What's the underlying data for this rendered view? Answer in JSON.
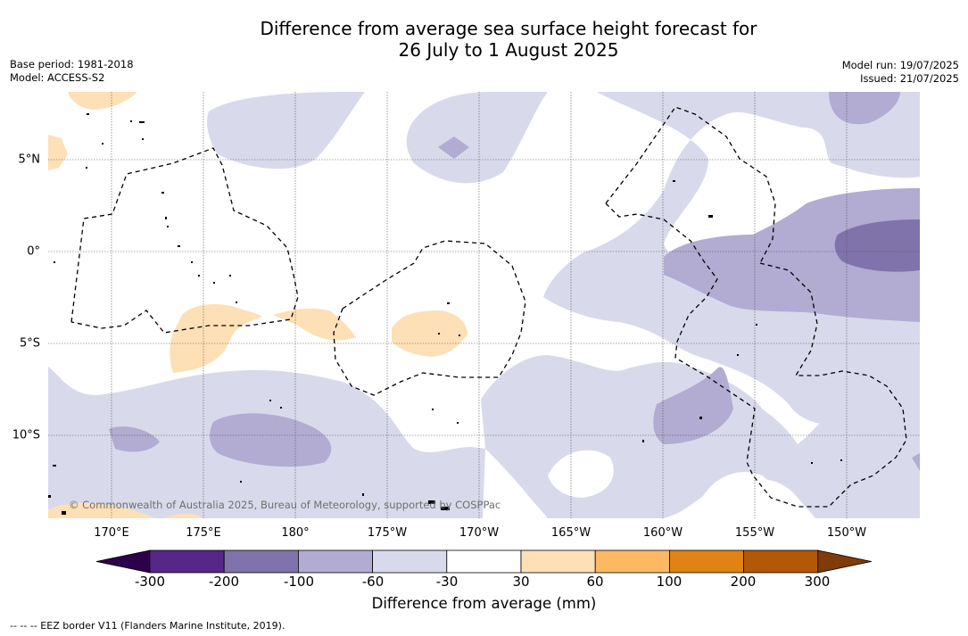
{
  "title": {
    "line1": "Difference from average sea surface height forecast for",
    "line2": "26 July to 1 August 2025"
  },
  "meta_left": {
    "base_period": "Base period: 1981-2018",
    "model": "Model: ACCESS-S2"
  },
  "meta_right": {
    "model_run": "Model run: 19/07/2025",
    "issued": "Issued: 21/07/2025"
  },
  "map": {
    "copyright": "© Commonwealth of Australia 2025, Bureau of Meteorology, supported by COSPPac",
    "lon_labels": [
      "170°E",
      "175°E",
      "180°",
      "175°W",
      "170°W",
      "165°W",
      "160°W",
      "155°W",
      "150°W"
    ],
    "lat_labels": [
      "5°N",
      "0°",
      "5°S",
      "10°S"
    ],
    "extent": {
      "lon_min": 165.5,
      "lon_max": 212.8,
      "lat_min": -14.5,
      "lat_max": 8.7
    },
    "colors": {
      "neg_300": "#2d004b",
      "neg_200": "#542788",
      "neg_100": "#8073ac",
      "neg_60": "#b2abd2",
      "neg_30": "#d8daeb",
      "zero": "#ffffff",
      "pos_30": "#fee0b6",
      "pos_60": "#fdb863",
      "pos_100": "#e08214",
      "pos_200": "#b35806",
      "pos_300": "#7f3b08"
    }
  },
  "colorbar": {
    "ticks": [
      "-300",
      "-200",
      "-100",
      "-60",
      "-30",
      "30",
      "60",
      "100",
      "200",
      "300"
    ],
    "label": "Difference from average (mm)",
    "colors": [
      "#2d004b",
      "#542788",
      "#8073ac",
      "#b2abd2",
      "#d8daeb",
      "#ffffff",
      "#fee0b6",
      "#fdb863",
      "#e08214",
      "#b35806",
      "#7f3b08"
    ]
  },
  "footnote": "--  --  -- EEZ border V11 (Flanders Marine Institute, 2019)."
}
